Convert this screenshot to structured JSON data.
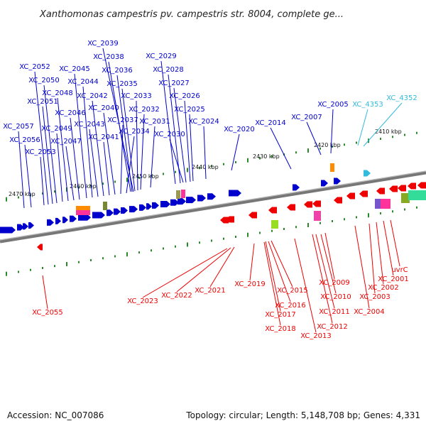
{
  "title": "Xanthomonas campestris pv. campestris str. 8004, complete ge...",
  "footer": {
    "accession": "Accession: NC_007086",
    "summary": "Topology: circular; Length: 5,148,708 bp; Genes: 4,331"
  },
  "colors": {
    "forward": "#0000cc",
    "reverse": "#ee0000",
    "rna": "#33bbdd",
    "backbone": "#808080",
    "ticks": "#2a8a2a"
  },
  "scale_labels": [
    "2410 kbp",
    "2420 kbp",
    "2430 kbp",
    "2440 kbp",
    "2450 kbp",
    "2460 kbp",
    "2470 kbp"
  ],
  "forward_genes": [
    "XC_2039",
    "XC_2038",
    "XC_2036",
    "XC_2035",
    "XC_2033",
    "XC_2032",
    "XC_2031",
    "XC_2034",
    "XC_2037",
    "XC_2040",
    "XC_2041",
    "XC_2042",
    "XC_2043",
    "XC_2044",
    "XC_2045",
    "XC_2046",
    "XC_2047",
    "XC_2048",
    "XC_2049",
    "XC_2050",
    "XC_2051",
    "XC_2052",
    "XC_2053",
    "XC_2056",
    "XC_2057",
    "XC_2029",
    "XC_2028",
    "XC_2027",
    "XC_2026",
    "XC_2025",
    "XC_2024",
    "XC_2030",
    "XC_2020",
    "XC_2014",
    "XC_2007",
    "XC_2005"
  ],
  "rna_genes": [
    "XC_4353",
    "XC_4352"
  ],
  "reverse_genes": [
    "XC_2023",
    "XC_2022",
    "XC_2021",
    "XC_2019",
    "XC_2015",
    "XC_2016",
    "XC_2017",
    "XC_2018",
    "XC_2013",
    "XC_2012",
    "XC_2011",
    "XC_2010",
    "XC_2009",
    "XC_2004",
    "XC_2003",
    "XC_2002",
    "XC_2001",
    "uvrC",
    "XC_2055"
  ]
}
